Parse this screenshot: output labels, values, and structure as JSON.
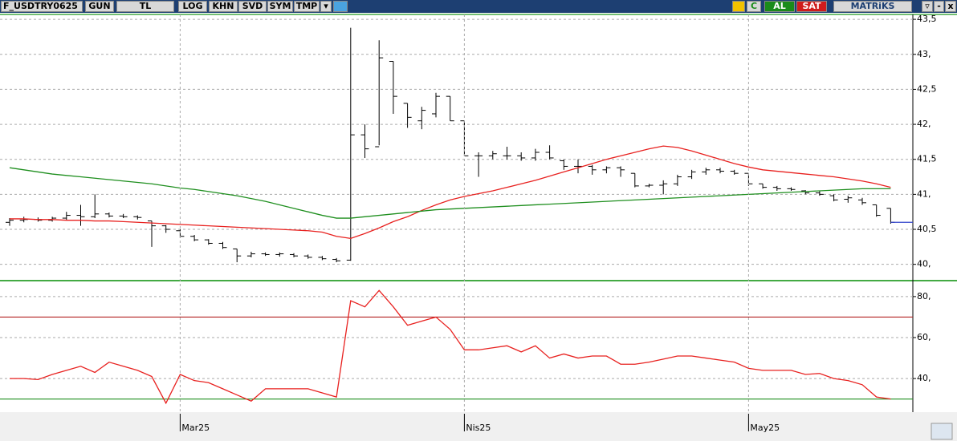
{
  "toolbar": {
    "symbol": "F_USDTRY0625",
    "period": "GUN",
    "currency": "TL",
    "buttons": [
      "LOG",
      "KHN",
      "SVD",
      "SYM",
      "TMP"
    ],
    "buy": "AL",
    "sell": "SAT",
    "brand": "MATRiKS"
  },
  "chart_data": [
    {
      "type": "ohlc",
      "categories": [
        null,
        null,
        null,
        null,
        null,
        null,
        null,
        null,
        null,
        null,
        null,
        null,
        "Mar25",
        null,
        null,
        null,
        null,
        null,
        null,
        null,
        null,
        null,
        null,
        null,
        null,
        null,
        null,
        null,
        null,
        null,
        null,
        null,
        "Nis25",
        null,
        null,
        null,
        null,
        null,
        null,
        null,
        null,
        null,
        null,
        null,
        null,
        null,
        null,
        null,
        null,
        null,
        null,
        null,
        "May25",
        null,
        null,
        null,
        null,
        null,
        null,
        null,
        null,
        null,
        null
      ],
      "open": [
        40.6,
        40.63,
        40.64,
        40.63,
        40.66,
        40.7,
        40.68,
        40.72,
        40.69,
        40.68,
        40.62,
        40.55,
        40.48,
        40.4,
        40.35,
        40.3,
        40.22,
        40.12,
        40.15,
        40.14,
        40.14,
        40.12,
        40.1,
        40.07,
        40.06,
        41.85,
        41.68,
        42.9,
        42.3,
        42.05,
        42.15,
        42.4,
        42.05,
        41.55,
        41.55,
        41.55,
        41.55,
        41.52,
        41.6,
        41.48,
        41.4,
        41.4,
        41.35,
        41.38,
        41.3,
        41.12,
        41.13,
        41.15,
        41.25,
        41.32,
        41.35,
        41.33,
        41.3,
        41.15,
        41.1,
        41.08,
        41.05,
        41.02,
        40.98,
        40.93,
        40.92,
        40.85,
        40.8
      ],
      "high": [
        40.66,
        40.68,
        40.67,
        40.68,
        40.75,
        40.85,
        41.0,
        40.74,
        40.72,
        40.7,
        40.62,
        40.56,
        40.5,
        40.42,
        40.36,
        40.32,
        40.22,
        40.18,
        40.17,
        40.17,
        40.16,
        40.14,
        40.12,
        40.09,
        43.38,
        42.0,
        43.2,
        42.9,
        42.3,
        42.25,
        42.45,
        42.4,
        42.05,
        41.6,
        41.62,
        41.68,
        41.6,
        41.65,
        41.7,
        41.5,
        41.5,
        41.42,
        41.4,
        41.4,
        41.3,
        41.15,
        41.2,
        41.28,
        41.35,
        41.38,
        41.38,
        41.35,
        41.3,
        41.15,
        41.12,
        41.1,
        41.06,
        41.05,
        41.0,
        40.98,
        40.95,
        40.85,
        40.8
      ],
      "low": [
        40.55,
        40.6,
        40.61,
        40.61,
        40.63,
        40.55,
        40.66,
        40.67,
        40.66,
        40.64,
        40.25,
        40.45,
        40.38,
        40.33,
        40.28,
        40.22,
        40.03,
        40.1,
        40.12,
        40.11,
        40.1,
        40.08,
        40.06,
        40.03,
        40.05,
        41.52,
        41.7,
        42.15,
        41.95,
        41.93,
        42.1,
        42.05,
        41.55,
        41.25,
        41.5,
        41.5,
        41.48,
        41.48,
        41.5,
        41.35,
        41.3,
        41.28,
        41.3,
        41.25,
        41.1,
        41.1,
        41.0,
        41.12,
        41.22,
        41.28,
        41.3,
        41.28,
        41.12,
        41.08,
        41.05,
        41.05,
        41.0,
        40.98,
        40.9,
        40.88,
        40.85,
        40.68,
        40.58
      ],
      "close": [
        40.63,
        40.64,
        40.63,
        40.66,
        40.7,
        40.68,
        40.72,
        40.69,
        40.68,
        40.67,
        40.55,
        40.5,
        40.4,
        40.35,
        40.3,
        40.24,
        40.12,
        40.15,
        40.14,
        40.15,
        40.12,
        40.1,
        40.08,
        40.05,
        41.85,
        41.65,
        42.95,
        42.4,
        42.1,
        42.2,
        42.4,
        42.05,
        41.55,
        41.55,
        41.58,
        41.55,
        41.52,
        41.6,
        41.52,
        41.4,
        41.4,
        41.35,
        41.38,
        41.35,
        41.12,
        41.13,
        41.15,
        41.25,
        41.32,
        41.35,
        41.33,
        41.3,
        41.15,
        41.1,
        41.08,
        41.07,
        41.02,
        41.0,
        40.92,
        40.95,
        40.88,
        40.7,
        40.6
      ],
      "bar_color": "#000000",
      "overlays": [
        {
          "color": "#e8211f",
          "values": [
            40.65,
            40.65,
            40.64,
            40.64,
            40.63,
            40.63,
            40.62,
            40.62,
            40.61,
            40.6,
            40.59,
            40.58,
            40.57,
            40.56,
            40.55,
            40.54,
            40.53,
            40.52,
            40.51,
            40.5,
            40.49,
            40.48,
            40.46,
            40.4,
            40.37,
            40.44,
            40.52,
            40.61,
            40.68,
            40.77,
            40.85,
            40.92,
            40.97,
            41.01,
            41.05,
            41.1,
            41.15,
            41.2,
            41.26,
            41.32,
            41.38,
            41.44,
            41.5,
            41.55,
            41.6,
            41.65,
            41.69,
            41.67,
            41.62,
            41.56,
            41.5,
            41.44,
            41.39,
            41.35,
            41.33,
            41.31,
            41.29,
            41.27,
            41.25,
            41.22,
            41.19,
            41.15,
            41.1
          ]
        },
        {
          "color": "#1f8f1f",
          "values": [
            41.38,
            41.35,
            41.32,
            41.29,
            41.27,
            41.25,
            41.23,
            41.21,
            41.19,
            41.17,
            41.15,
            41.12,
            41.09,
            41.07,
            41.04,
            41.01,
            40.98,
            40.94,
            40.9,
            40.85,
            40.8,
            40.75,
            40.7,
            40.66,
            40.66,
            40.68,
            40.7,
            40.72,
            40.74,
            40.76,
            40.78,
            40.79,
            40.8,
            40.81,
            40.82,
            40.83,
            40.84,
            40.85,
            40.86,
            40.87,
            40.88,
            40.89,
            40.9,
            40.91,
            40.92,
            40.93,
            40.94,
            40.95,
            40.96,
            40.97,
            40.98,
            40.99,
            41.0,
            41.01,
            41.02,
            41.03,
            41.04,
            41.05,
            41.06,
            41.07,
            41.08,
            41.08,
            41.08
          ]
        }
      ],
      "ylim": [
        39.79,
        43.57
      ],
      "yticks": [
        {
          "value": 40,
          "label": "40,"
        },
        {
          "value": 40.5,
          "label": "40,5"
        },
        {
          "value": 41,
          "label": "41,"
        },
        {
          "value": 41.5,
          "label": "41,5"
        },
        {
          "value": 42,
          "label": "42,"
        },
        {
          "value": 42.5,
          "label": "42,5"
        },
        {
          "value": 43,
          "label": "43,"
        },
        {
          "value": 43.5,
          "label": "43,5"
        }
      ],
      "grid": true
    },
    {
      "type": "line",
      "values": [
        40,
        40,
        39.5,
        42,
        44,
        46,
        43,
        48,
        46,
        44,
        41,
        28,
        42,
        39,
        38,
        35,
        32,
        29,
        35,
        35,
        35,
        35,
        33,
        31,
        78,
        75,
        83,
        75,
        66,
        68,
        70,
        64,
        54,
        54,
        55,
        56,
        53,
        56,
        50,
        52,
        50,
        51,
        51,
        47,
        47,
        48,
        49.5,
        51,
        51,
        50,
        49,
        48,
        45,
        44,
        44,
        44,
        42,
        42.5,
        40,
        39,
        37,
        31,
        30
      ],
      "color": "#e8211f",
      "reference_lines": [
        {
          "value": 70,
          "color": "#b22222"
        },
        {
          "value": 30,
          "color": "#1f8f1f"
        }
      ],
      "ylim": [
        24,
        87
      ],
      "yticks": [
        {
          "value": 40,
          "label": "40,"
        },
        {
          "value": 60,
          "label": "60,"
        },
        {
          "value": 80,
          "label": "80,"
        }
      ],
      "grid": true
    }
  ]
}
